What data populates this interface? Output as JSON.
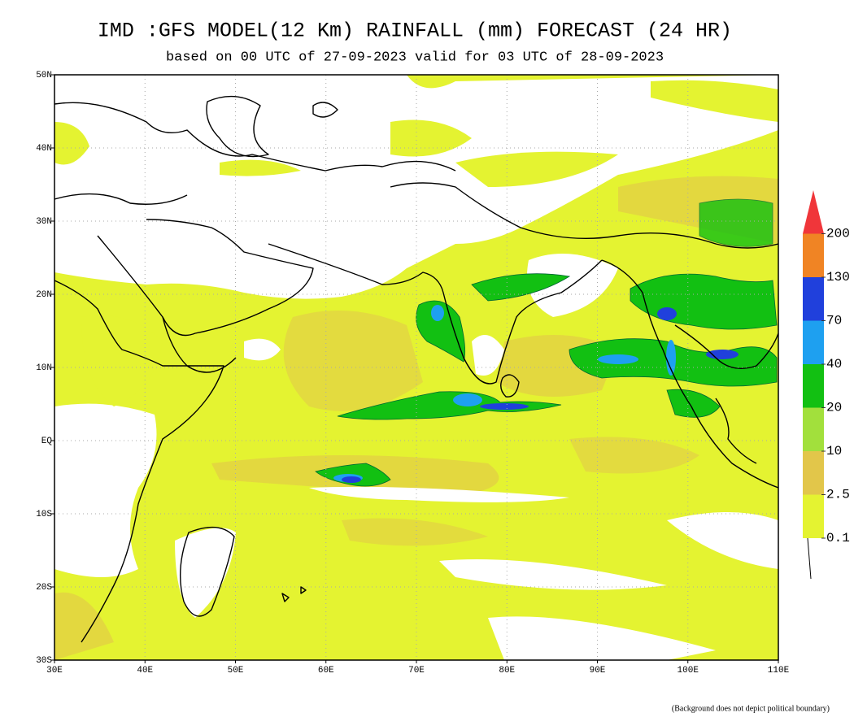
{
  "title": "IMD :GFS MODEL(12 Km) RAINFALL (mm) FORECAST (24 HR)",
  "subtitle": "based on 00 UTC of 27-09-2023 valid for 03 UTC of 28-09-2023",
  "lat_labels": [
    "50N",
    "40N",
    "30N",
    "20N",
    "10N",
    "EQ",
    "10S",
    "20S",
    "30S"
  ],
  "lon_labels": [
    "30E",
    "40E",
    "50E",
    "60E",
    "70E",
    "80E",
    "90E",
    "100E",
    "110E"
  ],
  "legend": {
    "levels": [
      0.1,
      2.5,
      10,
      20,
      40,
      70,
      130,
      200
    ],
    "colors": [
      "#e4f331",
      "#e2c64a",
      "#a2e03c",
      "#12c012",
      "#1ea0f0",
      "#2040dc",
      "#f08424",
      "#f0363a"
    ]
  },
  "footnote": "(Background does not depict political boundary)"
}
